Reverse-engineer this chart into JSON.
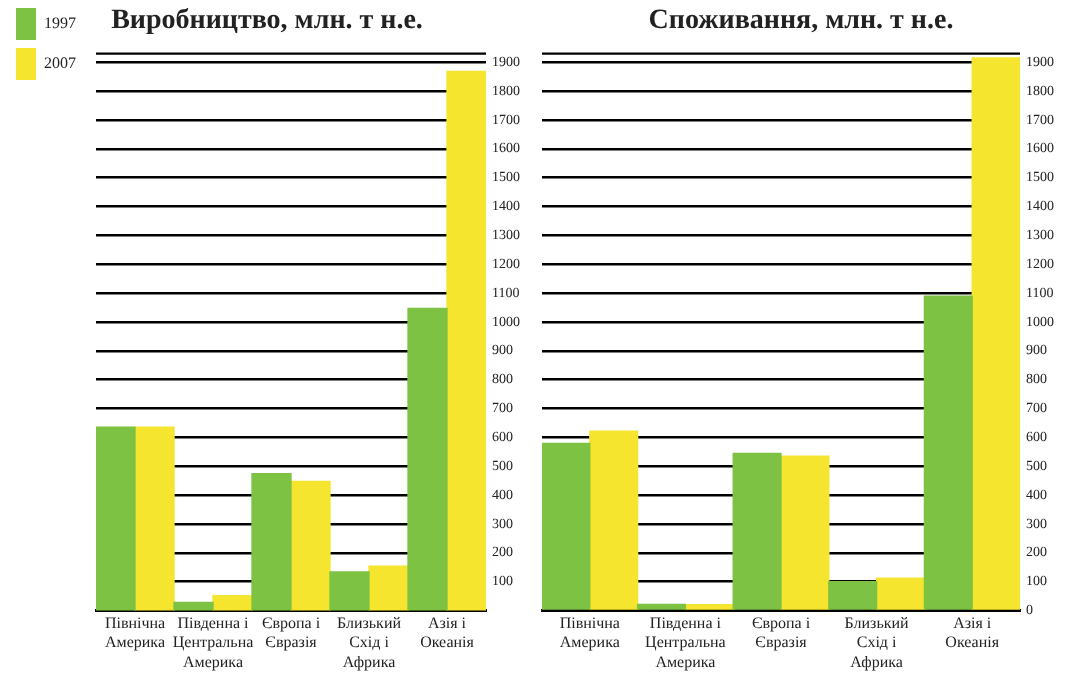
{
  "chart_data": [
    {
      "type": "bar",
      "title": "Виробництво, млн. т н.е.",
      "categories": [
        "Північна Америка",
        "Південна і Центральна Америка",
        "Європа і Євразія",
        "Близький Схід і Африка",
        "Азія і Океанія"
      ],
      "series": [
        {
          "name": "1997",
          "color": "#7dc243",
          "values": [
            635,
            28,
            474,
            133,
            1047
          ]
        },
        {
          "name": "2007",
          "color": "#f5e52e",
          "values": [
            635,
            51,
            447,
            153,
            1868
          ]
        }
      ],
      "ylim": [
        0,
        1930
      ],
      "yticks": [
        100,
        200,
        300,
        400,
        500,
        600,
        700,
        800,
        900,
        1000,
        1100,
        1200,
        1300,
        1400,
        1500,
        1600,
        1700,
        1800,
        1900
      ],
      "grid": "y",
      "legend": "top left"
    },
    {
      "type": "bar",
      "title": "Споживання, млн. т н.е.",
      "categories": [
        "Північна Америка",
        "Південна і Центральна Америка",
        "Європа і Євразія",
        "Близький Схід і Африка",
        "Азія і Океанія"
      ],
      "series": [
        {
          "name": "1997",
          "color": "#7dc243",
          "values": [
            579,
            21,
            544,
            100,
            1089
          ]
        },
        {
          "name": "2007",
          "color": "#f5e52e",
          "values": [
            621,
            20,
            535,
            112,
            1915
          ]
        }
      ],
      "ylim": [
        0,
        1930
      ],
      "yticks": [
        0,
        100,
        200,
        300,
        400,
        500,
        600,
        700,
        800,
        900,
        1000,
        1100,
        1200,
        1300,
        1400,
        1500,
        1600,
        1700,
        1800,
        1900
      ],
      "grid": "y",
      "legend": false
    }
  ]
}
